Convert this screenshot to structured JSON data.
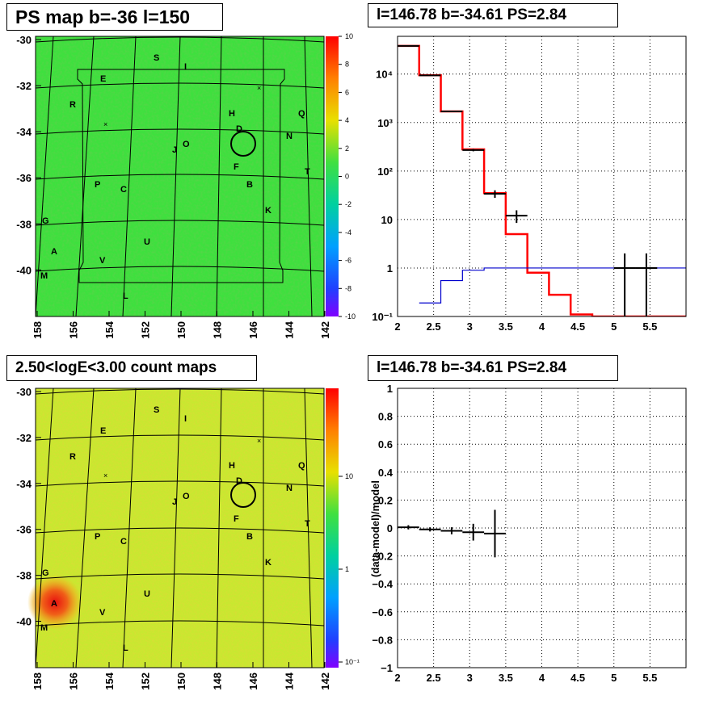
{
  "titles": {
    "tl": "PS map b=-36 l=150",
    "tr": "l=146.78 b=-34.61 PS=2.84",
    "bl": "2.50<logE<3.00 count maps",
    "br": "l=146.78 b=-34.61 PS=2.84"
  },
  "maps": {
    "lat_ticks": [
      "-30",
      "-32",
      "-34",
      "-36",
      "-38",
      "-40"
    ],
    "lon_ticks": [
      "158",
      "156",
      "154",
      "152",
      "150",
      "148",
      "146",
      "144",
      "142"
    ],
    "source_labels": [
      "S",
      "I",
      "E",
      "R",
      "H",
      "Q",
      "D",
      "N",
      "J",
      "O",
      "F",
      "T",
      "P",
      "C",
      "B",
      "K",
      "G",
      "U",
      "A",
      "V",
      "M",
      "L"
    ],
    "ps_colorbar_ticks": [
      "10",
      "8",
      "6",
      "4",
      "2",
      "0",
      "-2",
      "-4",
      "-6",
      "-8",
      "-10"
    ],
    "count_colorbar_ticks": [
      "10",
      "1",
      "10⁻¹"
    ],
    "colors": {
      "ps_background": "#3ee03e",
      "count_background": "#c8e830"
    }
  },
  "chart_data": [
    {
      "type": "line",
      "panel": "top-right",
      "log_y": true,
      "xlim": [
        2,
        6
      ],
      "ylim": [
        0.1,
        60000
      ],
      "xticks": [
        "2",
        "2.5",
        "3",
        "3.5",
        "4",
        "4.5",
        "5",
        "5.5"
      ],
      "yticks": [
        "10⁴",
        "10³",
        "10²",
        "10",
        "1",
        "10⁻¹"
      ],
      "grid": true,
      "series": [
        {
          "color": "#ff0000",
          "x": [
            2,
            2.3,
            2.6,
            2.9,
            3.2,
            3.5,
            3.8,
            4.1,
            4.4,
            4.7,
            5,
            5.3,
            5.6,
            5.9
          ],
          "values": [
            38000,
            9500,
            1700,
            280,
            35,
            5,
            0.8,
            0.28,
            0.11,
            0.1,
            0.1,
            0.1,
            0.1,
            0.1
          ]
        },
        {
          "color": "#0000cc",
          "x": [
            2.3,
            2.6,
            2.9,
            3.2,
            3.5,
            3.8,
            4.1,
            4.4,
            4.7,
            5,
            5.3,
            5.6,
            5.9,
            6
          ],
          "values": [
            0.19,
            0.55,
            0.9,
            1.0,
            1.0,
            1.0,
            1.0,
            1.0,
            1.0,
            1.0,
            1.0,
            1.0,
            1.0,
            1.0
          ]
        },
        {
          "color": "#000000",
          "points": [
            {
              "x": 2.15,
              "y": 38000,
              "xerr": 0.15,
              "ylo": 37000,
              "yhi": 39000
            },
            {
              "x": 2.45,
              "y": 9400,
              "xerr": 0.15,
              "ylo": 9200,
              "yhi": 9600
            },
            {
              "x": 2.75,
              "y": 1700,
              "xerr": 0.15,
              "ylo": 1650,
              "yhi": 1750
            },
            {
              "x": 3.05,
              "y": 270,
              "xerr": 0.15,
              "ylo": 255,
              "yhi": 285
            },
            {
              "x": 3.35,
              "y": 34,
              "xerr": 0.15,
              "ylo": 28,
              "yhi": 40
            },
            {
              "x": 3.65,
              "y": 12,
              "xerr": 0.15,
              "ylo": 8.5,
              "yhi": 15.5
            },
            {
              "x": 5.15,
              "y": 1,
              "xerr": 0.15,
              "ylo": 0.1,
              "yhi": 2
            },
            {
              "x": 5.45,
              "y": 1,
              "xerr": 0.15,
              "ylo": 0.1,
              "yhi": 2
            }
          ]
        }
      ]
    },
    {
      "type": "scatter",
      "panel": "bottom-right",
      "xlim": [
        2,
        6
      ],
      "ylim": [
        -1,
        1
      ],
      "xticks": [
        "2",
        "2.5",
        "3",
        "3.5",
        "4",
        "4.5",
        "5",
        "5.5"
      ],
      "yticks": [
        "1",
        "0.8",
        "0.6",
        "0.4",
        "0.2",
        "0",
        "−0.2",
        "−0.4",
        "−0.6",
        "−0.8",
        "−1"
      ],
      "ylabel": "(data-model)/model",
      "grid": true,
      "points": [
        {
          "x": 2.15,
          "y": 0.005,
          "xerr": 0.15,
          "ylo": -0.01,
          "yhi": 0.02
        },
        {
          "x": 2.45,
          "y": -0.01,
          "xerr": 0.15,
          "ylo": -0.025,
          "yhi": 0.005
        },
        {
          "x": 2.75,
          "y": -0.02,
          "xerr": 0.15,
          "ylo": -0.045,
          "yhi": 0.005
        },
        {
          "x": 3.05,
          "y": -0.03,
          "xerr": 0.15,
          "ylo": -0.09,
          "yhi": 0.03
        },
        {
          "x": 3.35,
          "y": -0.04,
          "xerr": 0.15,
          "ylo": -0.21,
          "yhi": 0.13
        }
      ]
    }
  ]
}
